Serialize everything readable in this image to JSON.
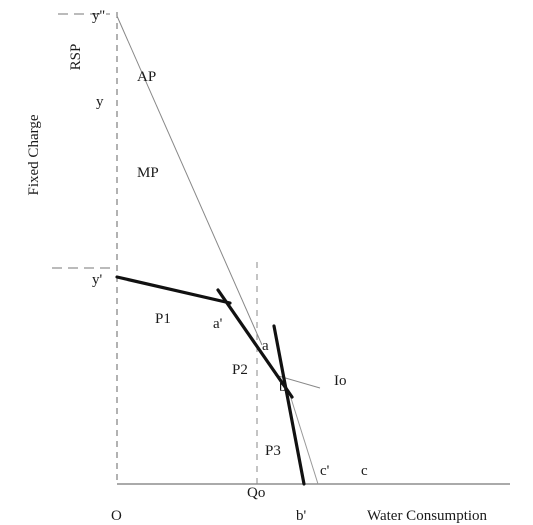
{
  "chart_data": {
    "type": "line",
    "title": "",
    "ylabel": "Fixed Charge",
    "y_axis_top_label": "RSP",
    "xlabel": "Water Consumption",
    "origin_label": "O",
    "x_tick_label": "Qo",
    "y_tick_labels": [
      "y''",
      "y",
      "y'"
    ],
    "region_labels": [
      "AP",
      "MP",
      "P1",
      "P2",
      "P3",
      "Io"
    ],
    "point_labels": [
      "a'",
      "a",
      "b",
      "b'",
      "c'",
      "c"
    ],
    "colors": {
      "bold": "#111111",
      "thin": "#777777",
      "dashed": "#888888",
      "axis": "#555555"
    }
  }
}
